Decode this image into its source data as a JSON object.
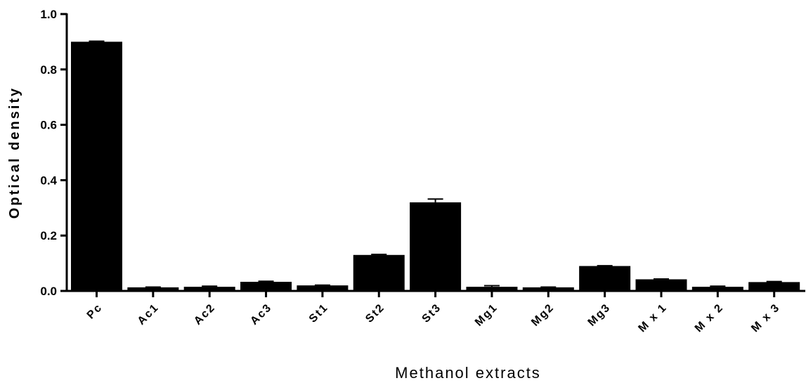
{
  "chart_data": {
    "type": "bar",
    "title": "",
    "xlabel": "Methanol extracts",
    "ylabel": "Optical density",
    "categories": [
      "Pc",
      "Ac1",
      "Ac2",
      "Ac3",
      "St1",
      "St2",
      "St3",
      "Mg1",
      "Mg2",
      "Mg3",
      "M x 1",
      "M x 2",
      "M x 3"
    ],
    "values": [
      0.9,
      0.013,
      0.015,
      0.033,
      0.02,
      0.13,
      0.32,
      0.015,
      0.013,
      0.09,
      0.042,
      0.015,
      0.032
    ],
    "errors": [
      0.002,
      0.001,
      0.002,
      0.002,
      0.001,
      0.002,
      0.012,
      0.004,
      0.001,
      0.001,
      0.001,
      0.002,
      0.002
    ],
    "ylim": [
      0,
      1.0
    ],
    "yticks": [
      0.0,
      0.2,
      0.4,
      0.6,
      0.8,
      1.0
    ],
    "ytick_labels": [
      "0.0",
      "0.2",
      "0.4",
      "0.6",
      "0.8",
      "1.0"
    ],
    "bar_color": "#000000",
    "grid": false,
    "legend": "none"
  }
}
